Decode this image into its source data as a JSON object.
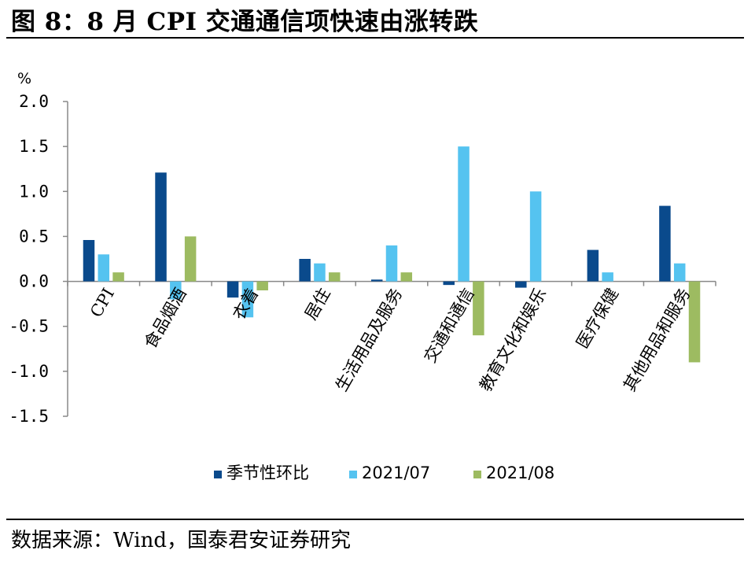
{
  "figure": {
    "title": "图 8：8 月 CPI 交通通信项快速由涨转跌",
    "source": "数据来源：Wind，国泰君安证券研究"
  },
  "chart_data": {
    "type": "bar",
    "unit_label": "%",
    "categories": [
      "CPI",
      "食品烟酒",
      "衣着",
      "居住",
      "生活用品及服务",
      "交通和通信",
      "教育文化和娱乐",
      "医疗保健",
      "其他用品和服务"
    ],
    "series": [
      {
        "name": "季节性环比",
        "color": "#0a4a8c",
        "values": [
          0.46,
          1.21,
          -0.18,
          0.25,
          0.02,
          -0.04,
          -0.07,
          0.35,
          0.84
        ]
      },
      {
        "name": "2021/07",
        "color": "#55c3f0",
        "values": [
          0.3,
          -0.2,
          -0.4,
          0.2,
          0.4,
          1.5,
          1.0,
          0.1,
          0.2
        ]
      },
      {
        "name": "2021/08",
        "color": "#9dbb61",
        "values": [
          0.1,
          0.5,
          -0.1,
          0.1,
          0.1,
          -0.6,
          0.0,
          0.0,
          -0.9
        ]
      }
    ],
    "y_ticks": [
      "2.0",
      "1.5",
      "1.0",
      "0.5",
      "0.0",
      "-0.5",
      "-1.0",
      "-1.5"
    ],
    "ylim": [
      -1.5,
      2.0
    ],
    "grid": false,
    "legend_position": "bottom"
  }
}
